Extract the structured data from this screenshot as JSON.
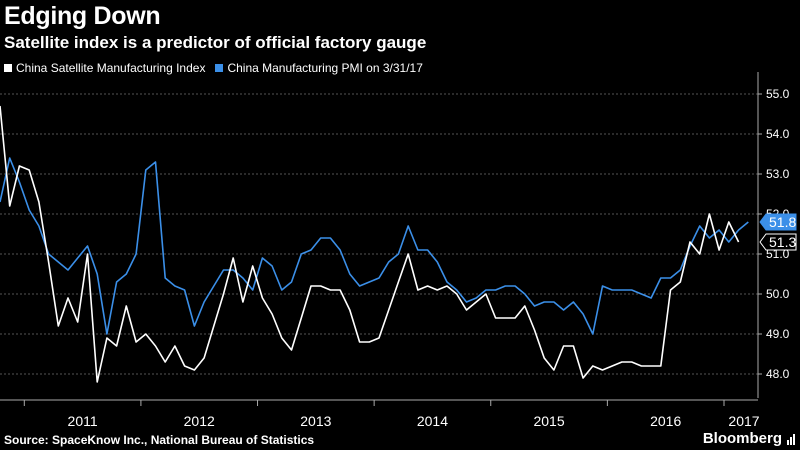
{
  "header": {
    "title": "Edging Down",
    "subtitle": "Satellite index is a predictor of official factory gauge"
  },
  "footer": {
    "source": "Source: SpaceKnow Inc., National Bureau of Statistics",
    "brand": "Bloomberg"
  },
  "chart_data": {
    "type": "line",
    "title": "Edging Down",
    "subtitle": "Satellite index is a predictor of official factory gauge",
    "xlabel": "",
    "ylabel": "",
    "x_ticks": [
      "2011",
      "2012",
      "2013",
      "2014",
      "2015",
      "2016",
      "2017"
    ],
    "y_ticks": [
      "48.0",
      "49.0",
      "50.0",
      "51.0",
      "52.0",
      "53.0",
      "54.0",
      "55.0"
    ],
    "ylim": [
      47.4,
      55.4
    ],
    "grid": true,
    "legend_position": "top-left",
    "series": [
      {
        "name": "China Satellite Manufacturing Index",
        "color": "#ffffff",
        "end_label": "51.3",
        "points": [
          [
            "2010-10",
            54.7
          ],
          [
            "2010-11",
            52.2
          ],
          [
            "2010-12",
            53.2
          ],
          [
            "2011-01",
            53.1
          ],
          [
            "2011-02",
            52.3
          ],
          [
            "2011-03",
            50.8
          ],
          [
            "2011-04",
            49.2
          ],
          [
            "2011-05",
            49.9
          ],
          [
            "2011-06",
            49.3
          ],
          [
            "2011-07",
            51.0
          ],
          [
            "2011-08",
            47.8
          ],
          [
            "2011-09",
            48.9
          ],
          [
            "2011-10",
            48.7
          ],
          [
            "2011-11",
            49.7
          ],
          [
            "2011-12",
            48.8
          ],
          [
            "2012-01",
            49.0
          ],
          [
            "2012-02",
            48.7
          ],
          [
            "2012-03",
            48.3
          ],
          [
            "2012-04",
            48.7
          ],
          [
            "2012-05",
            48.2
          ],
          [
            "2012-06",
            48.1
          ],
          [
            "2012-07",
            48.4
          ],
          [
            "2012-08",
            49.2
          ],
          [
            "2012-09",
            50.0
          ],
          [
            "2012-10",
            50.9
          ],
          [
            "2012-11",
            49.8
          ],
          [
            "2012-12",
            50.7
          ],
          [
            "2013-01",
            49.9
          ],
          [
            "2013-02",
            49.5
          ],
          [
            "2013-03",
            48.9
          ],
          [
            "2013-04",
            48.6
          ],
          [
            "2013-05",
            49.4
          ],
          [
            "2013-06",
            50.2
          ],
          [
            "2013-07",
            50.2
          ],
          [
            "2013-08",
            50.1
          ],
          [
            "2013-09",
            50.1
          ],
          [
            "2013-10",
            49.6
          ],
          [
            "2013-11",
            48.8
          ],
          [
            "2013-12",
            48.8
          ],
          [
            "2014-01",
            48.9
          ],
          [
            "2014-02",
            49.6
          ],
          [
            "2014-03",
            50.3
          ],
          [
            "2014-04",
            51.0
          ],
          [
            "2014-05",
            50.1
          ],
          [
            "2014-06",
            50.2
          ],
          [
            "2014-07",
            50.1
          ],
          [
            "2014-08",
            50.2
          ],
          [
            "2014-09",
            50.0
          ],
          [
            "2014-10",
            49.6
          ],
          [
            "2014-11",
            49.8
          ],
          [
            "2014-12",
            50.0
          ],
          [
            "2015-01",
            49.4
          ],
          [
            "2015-02",
            49.4
          ],
          [
            "2015-03",
            49.4
          ],
          [
            "2015-04",
            49.7
          ],
          [
            "2015-05",
            49.1
          ],
          [
            "2015-06",
            48.4
          ],
          [
            "2015-07",
            48.1
          ],
          [
            "2015-08",
            48.7
          ],
          [
            "2015-09",
            48.7
          ],
          [
            "2015-10",
            47.9
          ],
          [
            "2015-11",
            48.2
          ],
          [
            "2015-12",
            48.1
          ],
          [
            "2016-01",
            48.2
          ],
          [
            "2016-02",
            48.3
          ],
          [
            "2016-03",
            48.3
          ],
          [
            "2016-04",
            48.2
          ],
          [
            "2016-05",
            48.2
          ],
          [
            "2016-06",
            48.2
          ],
          [
            "2016-07",
            50.1
          ],
          [
            "2016-08",
            50.3
          ],
          [
            "2016-09",
            51.3
          ],
          [
            "2016-10",
            51.0
          ],
          [
            "2016-11",
            52.0
          ],
          [
            "2016-12",
            51.1
          ],
          [
            "2017-01",
            51.8
          ],
          [
            "2017-02",
            51.3
          ]
        ]
      },
      {
        "name": "China Manufacturing PMI on 3/31/17",
        "color": "#3b8fe8",
        "end_label": "51.8",
        "points": [
          [
            "2010-10",
            52.3
          ],
          [
            "2010-11",
            53.4
          ],
          [
            "2010-12",
            52.8
          ],
          [
            "2011-01",
            52.1
          ],
          [
            "2011-02",
            51.7
          ],
          [
            "2011-03",
            51.0
          ],
          [
            "2011-04",
            50.8
          ],
          [
            "2011-05",
            50.6
          ],
          [
            "2011-06",
            50.9
          ],
          [
            "2011-07",
            51.2
          ],
          [
            "2011-08",
            50.5
          ],
          [
            "2011-09",
            49.0
          ],
          [
            "2011-10",
            50.3
          ],
          [
            "2011-11",
            50.5
          ],
          [
            "2011-12",
            51.0
          ],
          [
            "2012-01",
            53.1
          ],
          [
            "2012-02",
            53.3
          ],
          [
            "2012-03",
            50.4
          ],
          [
            "2012-04",
            50.2
          ],
          [
            "2012-05",
            50.1
          ],
          [
            "2012-06",
            49.2
          ],
          [
            "2012-07",
            49.8
          ],
          [
            "2012-08",
            50.2
          ],
          [
            "2012-09",
            50.6
          ],
          [
            "2012-10",
            50.6
          ],
          [
            "2012-11",
            50.4
          ],
          [
            "2012-12",
            50.1
          ],
          [
            "2013-01",
            50.9
          ],
          [
            "2013-02",
            50.7
          ],
          [
            "2013-03",
            50.1
          ],
          [
            "2013-04",
            50.3
          ],
          [
            "2013-05",
            51.0
          ],
          [
            "2013-06",
            51.1
          ],
          [
            "2013-07",
            51.4
          ],
          [
            "2013-08",
            51.4
          ],
          [
            "2013-09",
            51.1
          ],
          [
            "2013-10",
            50.5
          ],
          [
            "2013-11",
            50.2
          ],
          [
            "2013-12",
            50.3
          ],
          [
            "2014-01",
            50.4
          ],
          [
            "2014-02",
            50.8
          ],
          [
            "2014-03",
            51.0
          ],
          [
            "2014-04",
            51.7
          ],
          [
            "2014-05",
            51.1
          ],
          [
            "2014-06",
            51.1
          ],
          [
            "2014-07",
            50.8
          ],
          [
            "2014-08",
            50.3
          ],
          [
            "2014-09",
            50.1
          ],
          [
            "2014-10",
            49.8
          ],
          [
            "2014-11",
            49.9
          ],
          [
            "2014-12",
            50.1
          ],
          [
            "2015-01",
            50.1
          ],
          [
            "2015-02",
            50.2
          ],
          [
            "2015-03",
            50.2
          ],
          [
            "2015-04",
            50.0
          ],
          [
            "2015-05",
            49.7
          ],
          [
            "2015-06",
            49.8
          ],
          [
            "2015-07",
            49.8
          ],
          [
            "2015-08",
            49.6
          ],
          [
            "2015-09",
            49.8
          ],
          [
            "2015-10",
            49.5
          ],
          [
            "2015-11",
            49.0
          ],
          [
            "2015-12",
            50.2
          ],
          [
            "2016-01",
            50.1
          ],
          [
            "2016-02",
            50.1
          ],
          [
            "2016-03",
            50.1
          ],
          [
            "2016-04",
            50.0
          ],
          [
            "2016-05",
            49.9
          ],
          [
            "2016-06",
            50.4
          ],
          [
            "2016-07",
            50.4
          ],
          [
            "2016-08",
            50.6
          ],
          [
            "2016-09",
            51.2
          ],
          [
            "2016-10",
            51.7
          ],
          [
            "2016-11",
            51.4
          ],
          [
            "2016-12",
            51.6
          ],
          [
            "2017-01",
            51.3
          ],
          [
            "2017-02",
            51.6
          ],
          [
            "2017-03",
            51.8
          ]
        ]
      }
    ]
  }
}
